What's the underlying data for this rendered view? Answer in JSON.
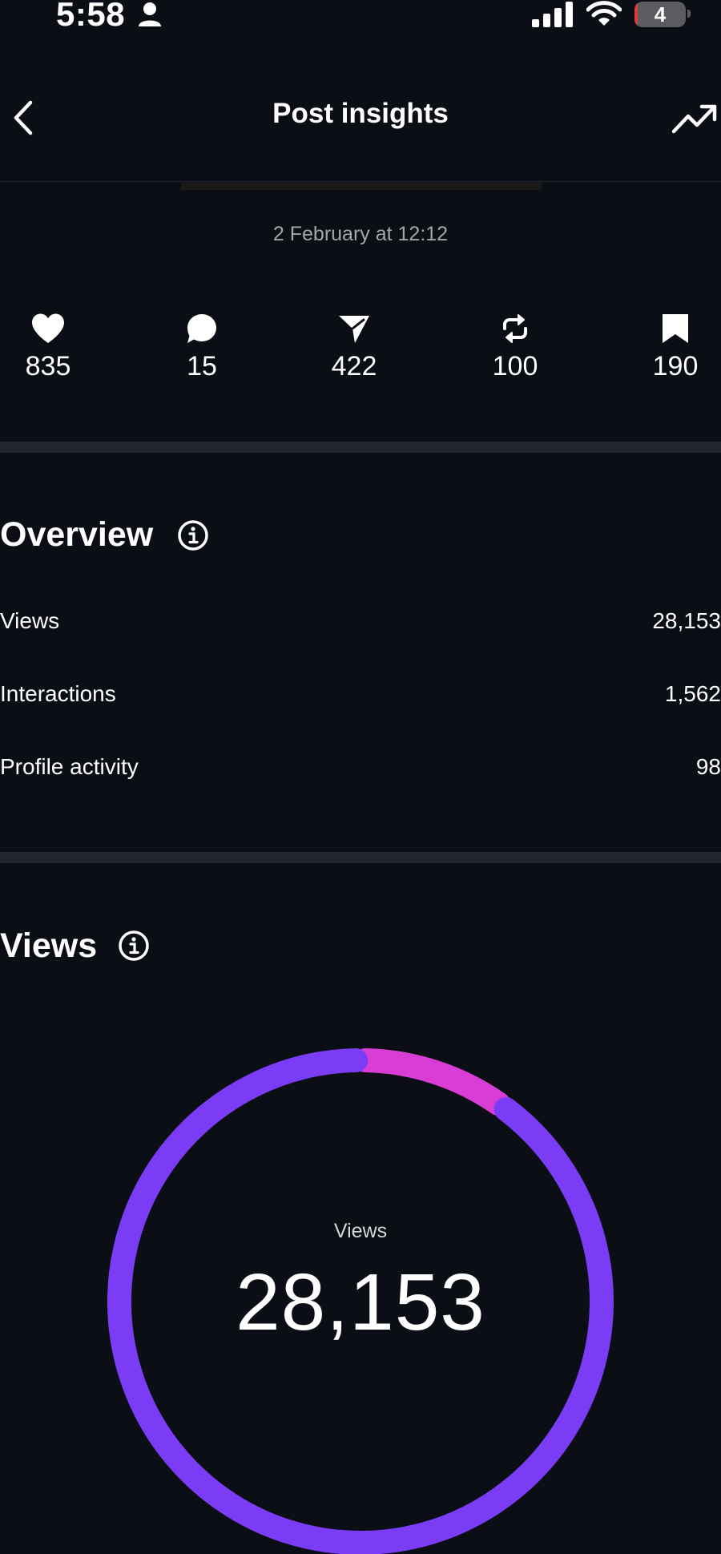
{
  "status_bar": {
    "time": "5:58",
    "battery_level": "4",
    "battery_fraction": 0.04
  },
  "header": {
    "title": "Post insights"
  },
  "post": {
    "date": "2 February at 12:12"
  },
  "stats": [
    {
      "icon": "heart-icon",
      "value": "835"
    },
    {
      "icon": "comment-icon",
      "value": "15"
    },
    {
      "icon": "share-icon",
      "value": "422"
    },
    {
      "icon": "repost-icon",
      "value": "100"
    },
    {
      "icon": "bookmark-icon",
      "value": "190"
    }
  ],
  "overview": {
    "title": "Overview",
    "rows": [
      {
        "label": "Views",
        "value": "28,153"
      },
      {
        "label": "Interactions",
        "value": "1,562"
      },
      {
        "label": "Profile activity",
        "value": "98"
      }
    ]
  },
  "views": {
    "title": "Views",
    "total_label": "Views",
    "total": "28,153"
  },
  "chart_data": {
    "type": "pie",
    "style": "donut",
    "center_label": "Views",
    "center_value": "28,153",
    "segments": [
      {
        "fraction": 0.1,
        "color": "#d83ed6"
      },
      {
        "fraction": 0.9,
        "color": "#7a3cf5"
      }
    ]
  },
  "colors": {
    "background": "#0b0e14",
    "primary_segment": "#7a3cf5",
    "secondary_segment": "#d83ed6",
    "divider": "#23262c",
    "muted_text": "#a4a6ab"
  }
}
